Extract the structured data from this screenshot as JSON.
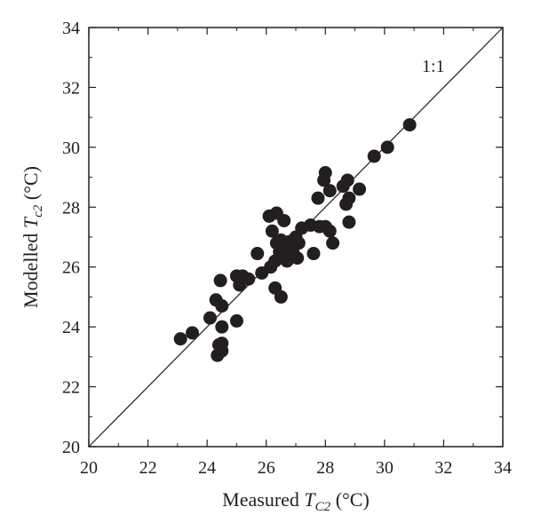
{
  "chart_data": {
    "type": "scatter",
    "title": "",
    "xlabel": {
      "main": "Measured ",
      "var": "T",
      "sub": "C2",
      "unit": " (°C)"
    },
    "ylabel": {
      "main": "Modelled ",
      "var": "T",
      "sub": "c2",
      "unit": " (°C)"
    },
    "xlim": [
      20,
      34
    ],
    "ylim": [
      20,
      34
    ],
    "xticks": [
      "20",
      "22",
      "24",
      "26",
      "28",
      "30",
      "32",
      "34"
    ],
    "yticks": [
      "20",
      "22",
      "24",
      "26",
      "28",
      "30",
      "32",
      "34"
    ],
    "grid": false,
    "legend": "none",
    "reference_line": {
      "label": "1:1",
      "from": [
        20,
        20
      ],
      "to": [
        34,
        34
      ]
    },
    "marker_color": "#231f20",
    "series": [
      {
        "points": [
          [
            23.1,
            23.6
          ],
          [
            23.5,
            23.8
          ],
          [
            24.1,
            24.3
          ],
          [
            24.3,
            24.9
          ],
          [
            24.4,
            23.4
          ],
          [
            24.35,
            23.05
          ],
          [
            24.5,
            23.45
          ],
          [
            24.5,
            23.2
          ],
          [
            24.5,
            24.0
          ],
          [
            24.5,
            24.7
          ],
          [
            24.45,
            25.55
          ],
          [
            25.0,
            24.2
          ],
          [
            25.0,
            25.7
          ],
          [
            25.1,
            25.4
          ],
          [
            25.2,
            25.7
          ],
          [
            25.4,
            25.6
          ],
          [
            25.7,
            26.45
          ],
          [
            25.85,
            25.8
          ],
          [
            26.1,
            27.7
          ],
          [
            26.15,
            26.0
          ],
          [
            26.2,
            27.2
          ],
          [
            26.3,
            25.3
          ],
          [
            26.3,
            26.2
          ],
          [
            26.35,
            26.8
          ],
          [
            26.35,
            27.8
          ],
          [
            26.45,
            26.5
          ],
          [
            26.5,
            25.0
          ],
          [
            26.5,
            26.9
          ],
          [
            26.6,
            27.55
          ],
          [
            26.6,
            26.6
          ],
          [
            26.7,
            26.2
          ],
          [
            26.8,
            26.85
          ],
          [
            26.9,
            26.5
          ],
          [
            27.0,
            27.0
          ],
          [
            27.05,
            26.3
          ],
          [
            27.1,
            26.8
          ],
          [
            27.2,
            27.3
          ],
          [
            27.5,
            27.4
          ],
          [
            27.6,
            26.45
          ],
          [
            27.8,
            27.35
          ],
          [
            27.75,
            28.3
          ],
          [
            28.0,
            29.15
          ],
          [
            27.95,
            28.9
          ],
          [
            28.0,
            27.35
          ],
          [
            28.15,
            27.2
          ],
          [
            28.15,
            28.55
          ],
          [
            28.25,
            26.8
          ],
          [
            28.6,
            28.7
          ],
          [
            28.7,
            28.1
          ],
          [
            28.75,
            28.9
          ],
          [
            28.8,
            28.3
          ],
          [
            28.8,
            27.5
          ],
          [
            29.15,
            28.6
          ],
          [
            29.65,
            29.7
          ],
          [
            30.1,
            30.0
          ],
          [
            30.85,
            30.75
          ]
        ]
      }
    ]
  }
}
